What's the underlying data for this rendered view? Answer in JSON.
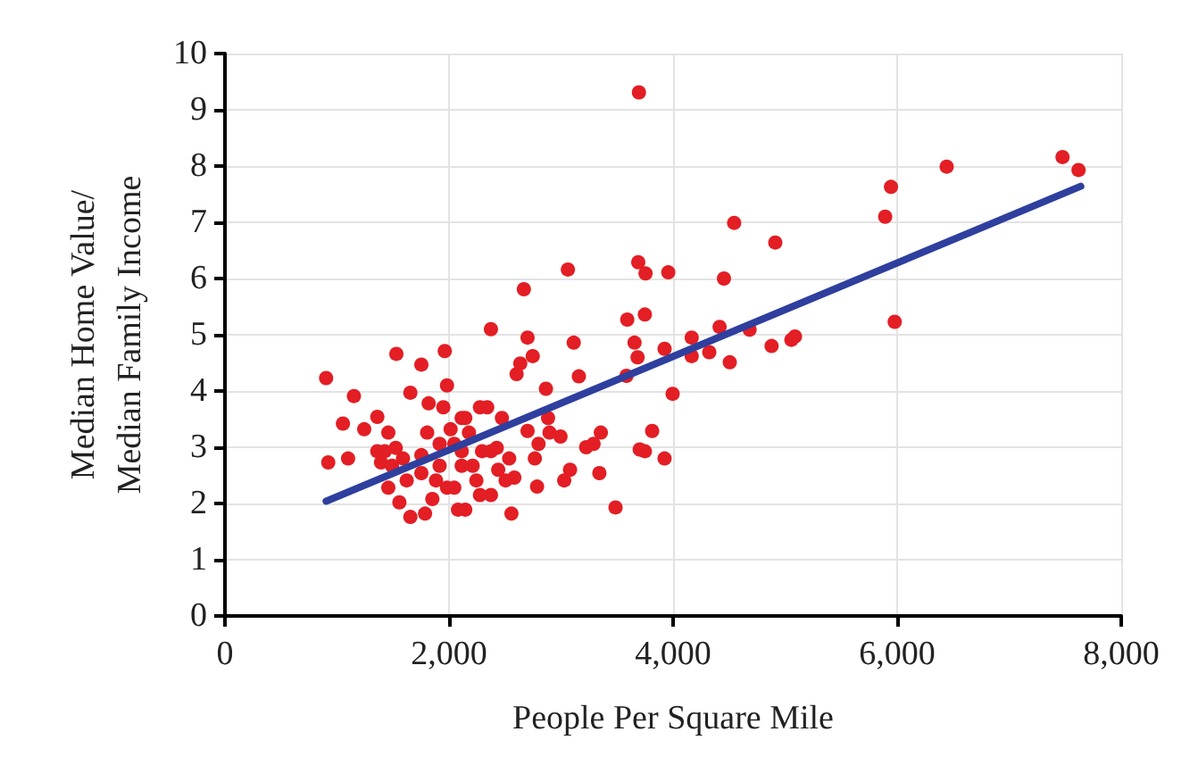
{
  "chart_data": {
    "type": "scatter",
    "xlabel": "People Per Square Mile",
    "ylabel": "Median Home Value/\nMedian Family Income",
    "xlim": [
      0,
      8000
    ],
    "ylim": [
      0,
      10
    ],
    "xticks": [
      0,
      {
        "value": 2000,
        "label": "2,000"
      },
      {
        "value": 4000,
        "label": "4,000"
      },
      {
        "value": 6000,
        "label": "6,000"
      },
      {
        "value": 8000,
        "label": "8,000"
      }
    ],
    "yticks": [
      0,
      1,
      2,
      3,
      4,
      5,
      6,
      7,
      8,
      9,
      10
    ],
    "grid": true,
    "marker": "circle",
    "series": [
      {
        "color": "#e31e24",
        "x": [
          903,
          922,
          1053,
          1099,
          1151,
          1243,
          1360,
          1530,
          1753,
          1962,
          2374,
          2668,
          3061,
          3695,
          3689,
          3754,
          3957,
          4454,
          4545,
          4912,
          5893,
          5945,
          6442,
          7476,
          7619,
          5978,
          5056,
          5088,
          4879,
          4683,
          4506,
          4415,
          4323,
          4166,
          4166,
          3996,
          3924,
          3924,
          3813,
          3748,
          3702,
          3748,
          3591,
          3656,
          3683,
          3584,
          3486,
          3355,
          3290,
          3224,
          3342,
          3159,
          3113,
          3080,
          3028,
          2995,
          2897,
          2865,
          2884,
          2786,
          2766,
          2799,
          2701,
          2747,
          2636,
          2603,
          2701,
          2557,
          2583,
          2537,
          2472,
          2341,
          2276,
          2426,
          2439,
          2374,
          2295,
          2276,
          2178,
          2211,
          2113,
          2080,
          2047,
          1982,
          1949,
          1916,
          1884,
          1851,
          1786,
          1655,
          1818,
          1805,
          1753,
          1655,
          1622,
          1589,
          1557,
          1458,
          1458,
          1426,
          1393,
          1524,
          1360,
          1491,
          1982,
          2113,
          2145,
          2244,
          1916,
          1753,
          2047,
          2113,
          2374,
          2505,
          2014,
          2145
        ],
        "values": [
          4.23,
          2.73,
          3.42,
          2.8,
          3.91,
          3.32,
          3.54,
          4.66,
          4.47,
          4.71,
          5.1,
          5.81,
          6.16,
          9.31,
          6.29,
          6.09,
          6.11,
          6.0,
          6.99,
          6.64,
          7.1,
          7.63,
          7.99,
          8.16,
          7.93,
          5.23,
          4.91,
          4.97,
          4.8,
          5.09,
          4.51,
          5.14,
          4.69,
          4.95,
          4.62,
          3.95,
          4.75,
          2.8,
          3.29,
          2.93,
          2.96,
          5.36,
          5.27,
          4.86,
          4.6,
          4.27,
          1.93,
          3.26,
          3.06,
          3.0,
          2.54,
          4.26,
          4.86,
          2.6,
          2.41,
          3.19,
          3.26,
          4.04,
          3.52,
          2.3,
          2.8,
          3.06,
          4.95,
          4.62,
          4.49,
          4.3,
          3.29,
          1.82,
          2.46,
          2.8,
          3.52,
          3.71,
          3.71,
          2.99,
          2.6,
          2.15,
          2.93,
          2.15,
          3.26,
          2.67,
          3.52,
          1.89,
          2.28,
          4.1,
          3.71,
          3.06,
          2.41,
          2.08,
          1.82,
          1.76,
          3.78,
          3.26,
          2.86,
          3.97,
          2.41,
          2.8,
          2.02,
          2.28,
          3.26,
          2.93,
          2.73,
          2.99,
          2.93,
          2.67,
          2.28,
          2.67,
          1.89,
          2.41,
          2.67,
          2.54,
          3.06,
          2.93,
          2.93,
          2.41,
          3.32,
          3.52
        ]
      },
      {
        "type": "line",
        "color": "#2e3f9e",
        "marker": "none",
        "x": [
          903,
          7639
        ],
        "values": [
          2.04,
          7.64
        ]
      }
    ]
  }
}
